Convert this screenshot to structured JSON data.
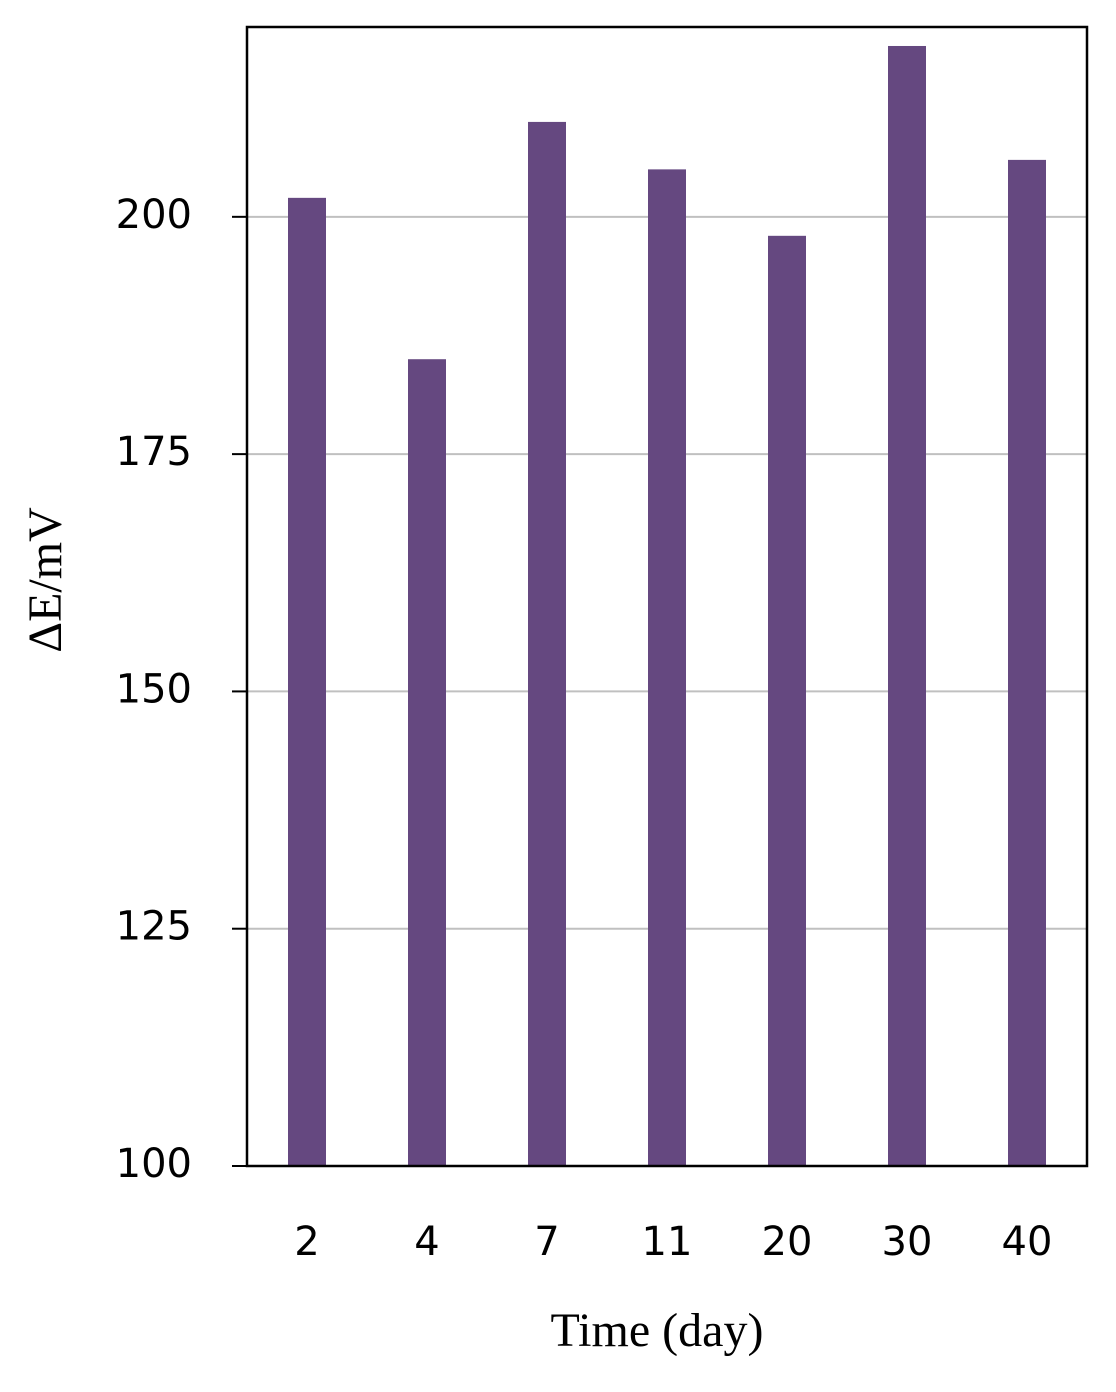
{
  "chart_data": {
    "type": "bar",
    "x_label": "Time (day)",
    "y_label": "ΔE/mV",
    "categories": [
      "2",
      "4",
      "7",
      "11",
      "20",
      "30",
      "40"
    ],
    "values": [
      202,
      185,
      210,
      205,
      198,
      218,
      206
    ],
    "color": "#654880",
    "ylim": [
      100,
      220
    ],
    "yticks": [
      100,
      125,
      150,
      175,
      200
    ],
    "grid": true
  }
}
